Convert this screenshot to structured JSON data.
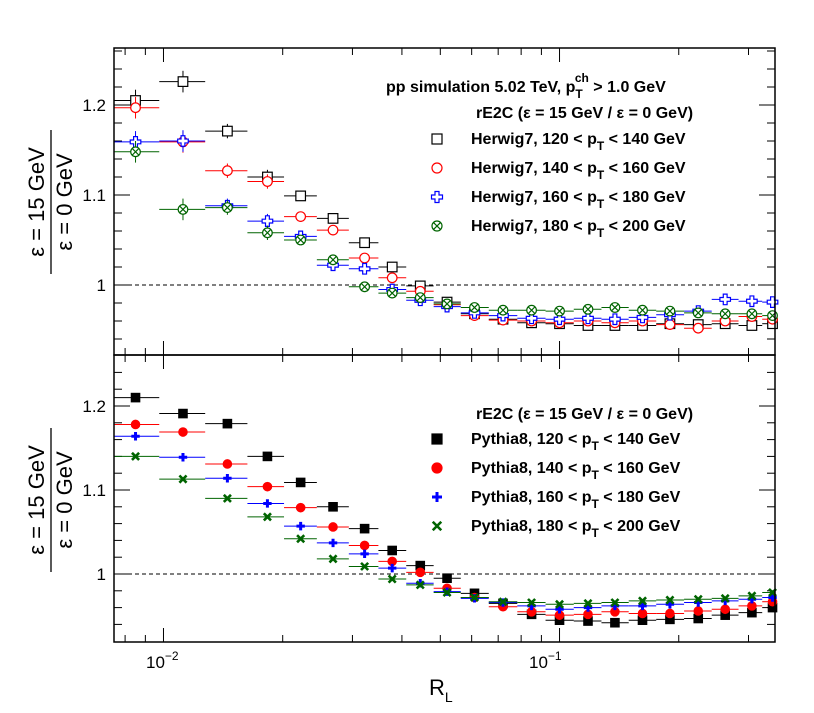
{
  "chart_data": [
    {
      "type": "scatter",
      "panel": "top",
      "title": "pp simulation 5.02 TeV, p_T^ch > 1.0 GeV",
      "header": "rE2C (ε = 15 GeV / ε = 0 GeV)",
      "xlabel": "",
      "ylabel_num": "ε = 15 GeV",
      "ylabel_den": "ε = 0 GeV",
      "xscale": "log",
      "xlim": [
        0.0075,
        0.35
      ],
      "ylim": [
        0.92,
        1.26
      ],
      "yticks": [
        1,
        1.1,
        1.2
      ],
      "ytick_labels": [
        "1",
        "1.1",
        "1.2"
      ],
      "reference_line": 1,
      "x": [
        0.0085,
        0.0112,
        0.0145,
        0.0183,
        0.0222,
        0.0268,
        0.0322,
        0.0378,
        0.0445,
        0.052,
        0.061,
        0.072,
        0.085,
        0.1,
        0.118,
        0.138,
        0.162,
        0.19,
        0.224,
        0.262,
        0.306,
        0.345
      ],
      "series": [
        {
          "name": "Herwig7, 120 < p_T < 140 GeV",
          "label_pre": "Herwig7, 120 < p",
          "label_post": " < 140 GeV",
          "marker": "open-square",
          "color": "#000000",
          "values": [
            1.205,
            1.226,
            1.171,
            1.12,
            1.099,
            1.074,
            1.047,
            1.02,
            0.999,
            0.981,
            0.968,
            0.962,
            0.958,
            0.957,
            0.955,
            0.955,
            0.955,
            0.957,
            0.956,
            0.957,
            0.955,
            0.957
          ]
        },
        {
          "name": "Herwig7, 140 < p_T < 160 GeV",
          "label_pre": "Herwig7, 140 < p",
          "label_post": " < 160 GeV",
          "marker": "open-circle",
          "color": "#ff0000",
          "values": [
            1.197,
            1.159,
            1.127,
            1.115,
            1.076,
            1.061,
            1.03,
            1.008,
            0.993,
            0.978,
            0.966,
            0.961,
            0.96,
            0.958,
            0.96,
            0.958,
            0.96,
            0.956,
            0.952,
            0.96,
            0.965,
            0.962
          ]
        },
        {
          "name": "Herwig7, 160 < p_T < 180 GeV",
          "label_pre": "Herwig7, 160 < p",
          "label_post": " < 180 GeV",
          "marker": "open-cross",
          "color": "#0000ff",
          "values": [
            1.159,
            1.16,
            1.088,
            1.071,
            1.054,
            1.022,
            1.018,
            0.995,
            0.983,
            0.976,
            0.969,
            0.966,
            0.963,
            0.962,
            0.963,
            0.962,
            0.964,
            0.967,
            0.971,
            0.984,
            0.982,
            0.981
          ]
        },
        {
          "name": "Herwig7, 180 < p_T < 200 GeV",
          "label_pre": "Herwig7, 180 < p",
          "label_post": " < 200 GeV",
          "marker": "open-x",
          "color": "#006400",
          "values": [
            1.148,
            1.084,
            1.086,
            1.058,
            1.05,
            1.028,
            0.998,
            0.991,
            0.986,
            0.979,
            0.975,
            0.972,
            0.972,
            0.971,
            0.973,
            0.975,
            0.972,
            0.971,
            0.969,
            0.968,
            0.968,
            0.966
          ]
        }
      ]
    },
    {
      "type": "scatter",
      "panel": "bottom",
      "header": "rE2C (ε = 15 GeV / ε = 0 GeV)",
      "xlabel": "R_L",
      "xlabel_main": "R",
      "xlabel_sub": "L",
      "ylabel_num": "ε = 15 GeV",
      "ylabel_den": "ε = 0 GeV",
      "xscale": "log",
      "xlim": [
        0.0075,
        0.35
      ],
      "ylim": [
        0.92,
        1.26
      ],
      "yticks": [
        1,
        1.1,
        1.2
      ],
      "ytick_labels": [
        "1",
        "1.1",
        "1.2"
      ],
      "xtick_labels": [
        "10^-2",
        "10^-1"
      ],
      "reference_line": 1,
      "x": [
        0.0085,
        0.0112,
        0.0145,
        0.0183,
        0.0222,
        0.0268,
        0.0322,
        0.0378,
        0.0445,
        0.052,
        0.061,
        0.072,
        0.085,
        0.1,
        0.118,
        0.138,
        0.162,
        0.19,
        0.224,
        0.262,
        0.306,
        0.345
      ],
      "series": [
        {
          "name": "Pythia8, 120 < p_T < 140 GeV",
          "label_pre": "Pythia8, 120 < p",
          "label_post": " < 140 GeV",
          "marker": "filled-square",
          "color": "#000000",
          "values": [
            1.21,
            1.191,
            1.179,
            1.14,
            1.109,
            1.08,
            1.054,
            1.028,
            1.01,
            0.995,
            0.977,
            0.965,
            0.952,
            0.945,
            0.944,
            0.942,
            0.945,
            0.946,
            0.947,
            0.951,
            0.954,
            0.96
          ]
        },
        {
          "name": "Pythia8, 140 < p_T < 160 GeV",
          "label_pre": "Pythia8, 140 < p",
          "label_post": " < 160 GeV",
          "marker": "filled-circle",
          "color": "#ff0000",
          "values": [
            1.178,
            1.169,
            1.131,
            1.104,
            1.079,
            1.056,
            1.034,
            1.015,
            1.002,
            0.983,
            0.972,
            0.961,
            0.955,
            0.951,
            0.952,
            0.955,
            0.953,
            0.953,
            0.956,
            0.958,
            0.962,
            0.967
          ]
        },
        {
          "name": "Pythia8, 160 < p_T < 180 GeV",
          "label_pre": "Pythia8, 160 < p",
          "label_post": " < 180 GeV",
          "marker": "filled-cross",
          "color": "#0000ff",
          "values": [
            1.164,
            1.139,
            1.114,
            1.084,
            1.057,
            1.037,
            1.024,
            1.007,
            0.989,
            0.979,
            0.971,
            0.966,
            0.962,
            0.958,
            0.96,
            0.962,
            0.962,
            0.964,
            0.966,
            0.968,
            0.97,
            0.972
          ]
        },
        {
          "name": "Pythia8, 180 < p_T < 200 GeV",
          "label_pre": "Pythia8, 180 < p",
          "label_post": " < 200 GeV",
          "marker": "filled-x",
          "color": "#006400",
          "values": [
            1.14,
            1.113,
            1.09,
            1.068,
            1.042,
            1.018,
            1.009,
            0.994,
            0.987,
            0.978,
            0.972,
            0.967,
            0.966,
            0.964,
            0.965,
            0.966,
            0.968,
            0.969,
            0.97,
            0.971,
            0.974,
            0.978
          ]
        }
      ]
    }
  ]
}
